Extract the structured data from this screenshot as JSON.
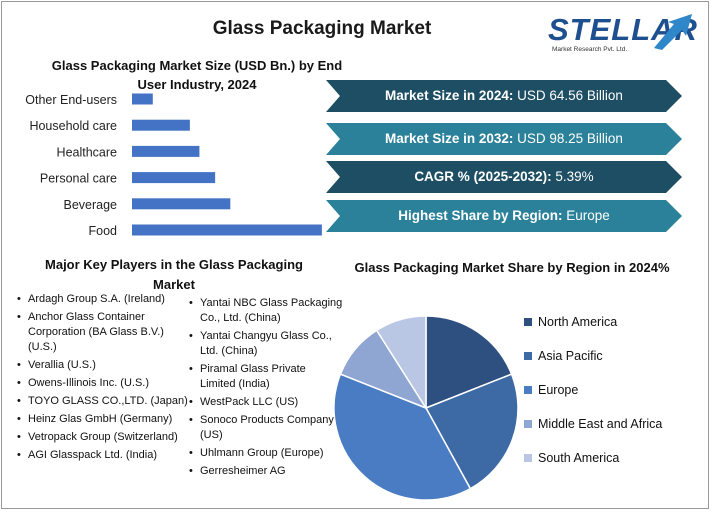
{
  "title": "Glass Packaging Market",
  "logo": {
    "word": "STELLAR",
    "subtitle": "Market Research Pvt. Ltd."
  },
  "stats": [
    {
      "label": "Market Size in 2024:",
      "value": "USD 64.56 Billion",
      "color": "#1d4e63"
    },
    {
      "label": "Market Size in 2032:",
      "value": "USD 98.25 Billion",
      "color": "#2a8199"
    },
    {
      "label": "CAGR % (2025-2032):",
      "value": "5.39%",
      "color": "#1d4e63"
    },
    {
      "label": "Highest Share by Region:",
      "value": "Europe",
      "color": "#2a8199"
    }
  ],
  "players": {
    "title": "Major Key Players in the Glass Packaging Market",
    "col1": [
      "Ardagh Group S.A. (Ireland)",
      "Anchor Glass Container Corporation (BA Glass B.V.) (U.S.)",
      "Verallia (U.S.)",
      "Owens-Illinois Inc. (U.S.)",
      "TOYO GLASS CO.,LTD. (Japan)",
      "Heinz Glas GmbH (Germany)",
      "Vetropack Group (Switzerland)",
      "AGI Glasspack Ltd. (India)"
    ],
    "col2": [
      "Yantai NBC Glass Packaging Co., Ltd. (China)",
      "Yantai Changyu Glass Co., Ltd. (China)",
      "Piramal Glass Private Limited (India)",
      "WestPack LLC (US)",
      "Sonoco Products Company (US)",
      "Uhlmann Group (Europe)",
      "Gerresheimer AG"
    ]
  },
  "chart_data": [
    {
      "type": "bar",
      "orientation": "horizontal",
      "title": "Glass Packaging Market Size (USD Bn.) by End User Industry, 2024",
      "categories": [
        "Other End-users",
        "Household care",
        "Healthcare",
        "Personal care",
        "Beverage",
        "Food"
      ],
      "values": [
        3.7,
        10.3,
        12.0,
        14.8,
        17.5,
        33.8
      ],
      "color": "#4472c4",
      "xaxis_visible": false,
      "xlim": [
        0,
        34
      ]
    },
    {
      "type": "pie",
      "title": "Glass Packaging Market Share by Region in 2024%",
      "labels": [
        "North America",
        "Asia Pacific",
        "Europe",
        "Middle East and Africa",
        "South America"
      ],
      "values": [
        19,
        23,
        39,
        10,
        9
      ],
      "colors": [
        "#2e5081",
        "#3d6aa5",
        "#4a7cc4",
        "#8fa6d3",
        "#b9c7e4"
      ],
      "legend": "right"
    }
  ]
}
